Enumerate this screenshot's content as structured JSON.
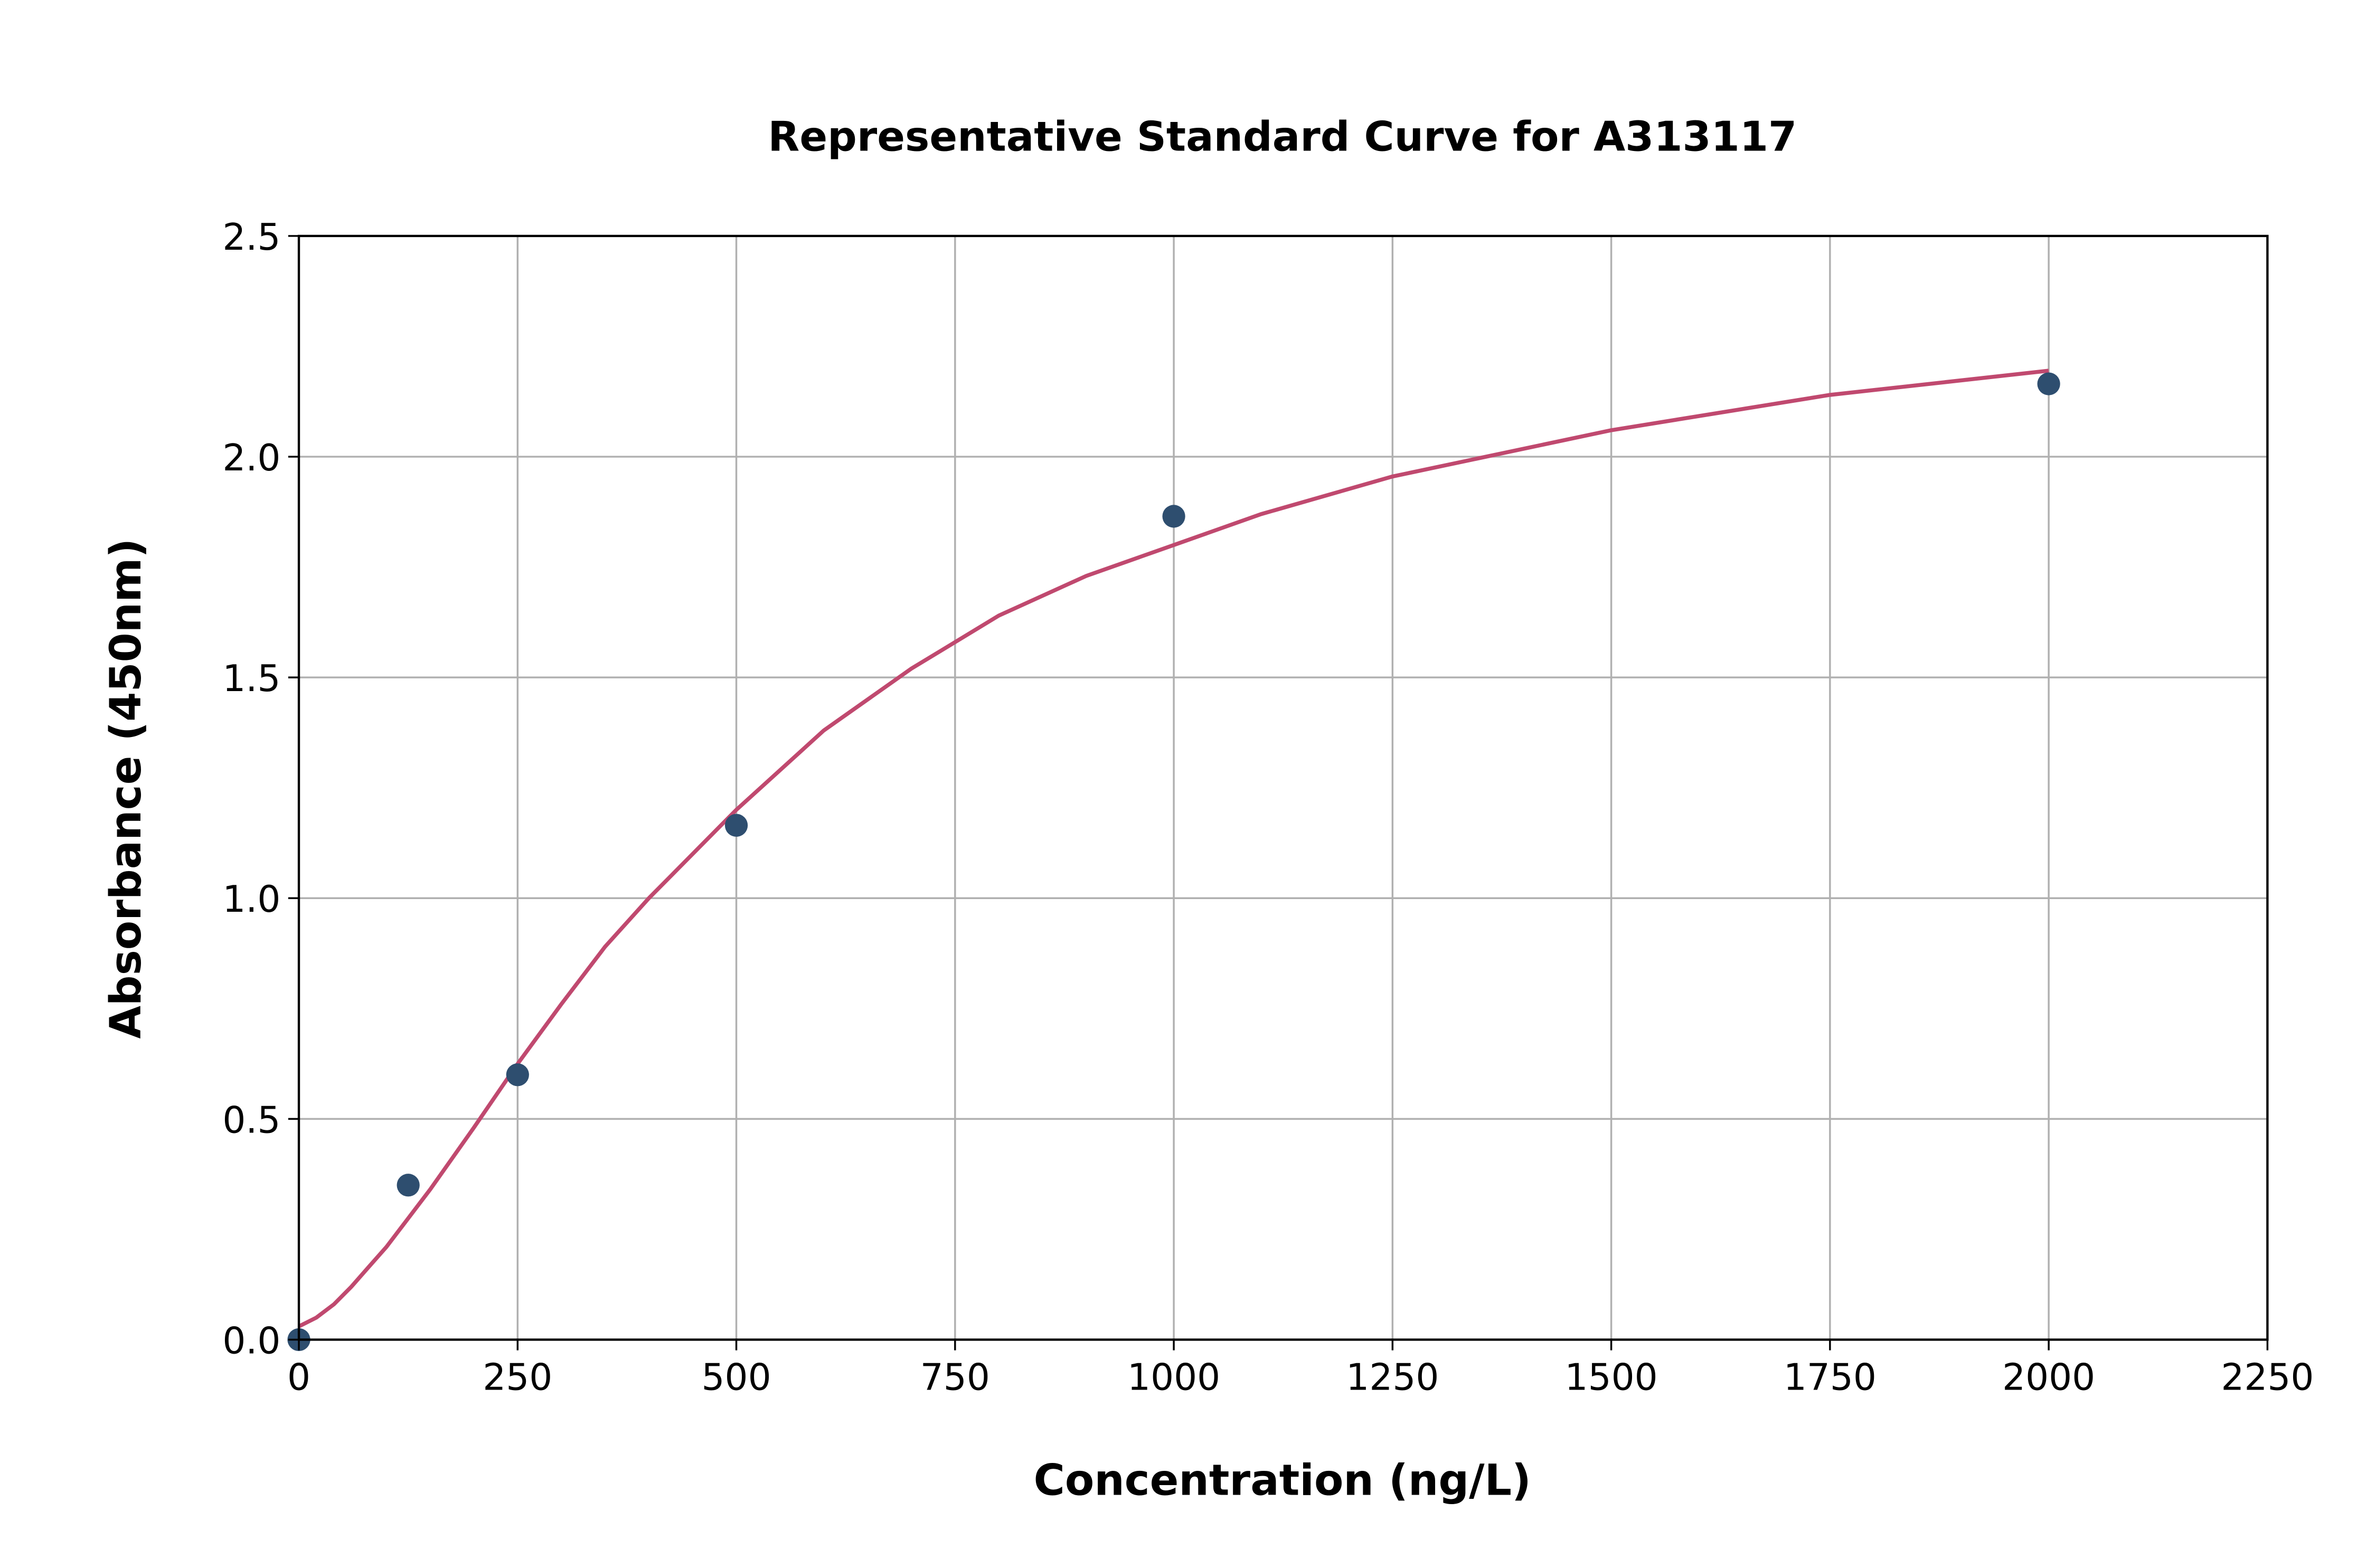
{
  "chart_data": {
    "type": "scatter",
    "title": "Representative Standard Curve for A313117",
    "xlabel": "Concentration (ng/L)",
    "ylabel": "Absorbance (450nm)",
    "xlim": [
      0,
      2250
    ],
    "ylim": [
      0,
      2.5
    ],
    "xticks": [
      "0",
      "250",
      "500",
      "750",
      "1000",
      "1250",
      "1500",
      "1750",
      "2000",
      "2250"
    ],
    "yticks": [
      "0.0",
      "0.5",
      "1.0",
      "1.5",
      "2.0",
      "2.5"
    ],
    "grid": true,
    "points": {
      "x": [
        0,
        125,
        250,
        500,
        1000,
        2000
      ],
      "y": [
        0.0,
        0.35,
        0.6,
        1.165,
        1.865,
        2.165
      ],
      "color": "#2e4e6f"
    },
    "fit_curve": {
      "x": [
        0,
        20,
        40,
        60,
        80,
        100,
        150,
        200,
        250,
        300,
        350,
        400,
        450,
        500,
        600,
        700,
        800,
        900,
        1000,
        1100,
        1250,
        1500,
        1750,
        2000
      ],
      "y": [
        0.03,
        0.05,
        0.08,
        0.12,
        0.165,
        0.21,
        0.34,
        0.48,
        0.625,
        0.76,
        0.89,
        1.0,
        1.1,
        1.2,
        1.38,
        1.52,
        1.64,
        1.73,
        1.8,
        1.87,
        1.955,
        2.06,
        2.14,
        2.195
      ],
      "color": "#c0496f"
    }
  }
}
